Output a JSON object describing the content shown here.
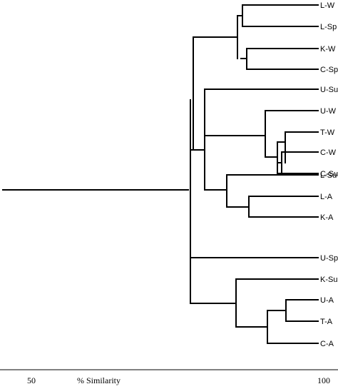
{
  "dendrogram": {
    "leaves": [
      "L-W",
      "L-Sp",
      "K-W",
      "C-Spe",
      "U-Sum",
      "U-W",
      "T-W",
      "C-W",
      "C-Sum",
      "L-Su",
      "L-A",
      "K-A",
      "U-Spe",
      "K-Sum",
      "U-A",
      "T-A",
      "C-A"
    ],
    "scale": {
      "title": "% Similarity",
      "tick_labels": [
        "50",
        "100"
      ]
    }
  }
}
